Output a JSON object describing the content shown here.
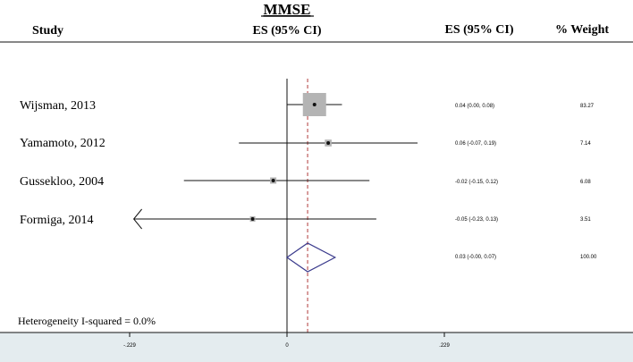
{
  "chart_data": {
    "type": "forest",
    "title": "MMSE",
    "headers": {
      "study": "Study",
      "es_plot": "ES (95% CI)",
      "es_text": "ES (95% CI)",
      "weight": "% Weight"
    },
    "xlim": [
      -0.229,
      0.229
    ],
    "ticks": [
      {
        "value": -0.229,
        "label": "-.229"
      },
      {
        "value": 0,
        "label": "0"
      },
      {
        "value": 0.229,
        "label": ".229"
      }
    ],
    "reference_line": 0,
    "overall_line": 0.03,
    "studies": [
      {
        "name": "Wijsman, 2013",
        "es": 0.04,
        "lo": 0.0,
        "hi": 0.08,
        "es_text": "0.04 (0.00, 0.08)",
        "weight": 83.27,
        "weight_text": "83.27"
      },
      {
        "name": "Yamamoto, 2012",
        "es": 0.06,
        "lo": -0.07,
        "hi": 0.19,
        "es_text": "0.06 (-0.07, 0.19)",
        "weight": 7.14,
        "weight_text": "7.14"
      },
      {
        "name": "Gussekloo, 2004",
        "es": -0.02,
        "lo": -0.15,
        "hi": 0.12,
        "es_text": "-0.02 (-0.15, 0.12)",
        "weight": 6.08,
        "weight_text": "6.08"
      },
      {
        "name": "Formiga, 2014",
        "es": -0.05,
        "lo": -0.23,
        "hi": 0.13,
        "es_text": "-0.05 (-0.23, 0.13)",
        "weight": 3.51,
        "weight_text": "3.51",
        "arrow_left": true
      }
    ],
    "overall": {
      "es": 0.03,
      "lo": -0.0,
      "hi": 0.07,
      "es_text": "0.03 (-0.00, 0.07)",
      "weight_text": "100.00"
    },
    "heterogeneity": "Heterogeneity I-squared =  0.0%",
    "colors": {
      "box": "#b4b4b4",
      "diamond": "#3a3a8c",
      "overall_line": "#b03a3a",
      "axis_band": "#e4ecef"
    }
  }
}
